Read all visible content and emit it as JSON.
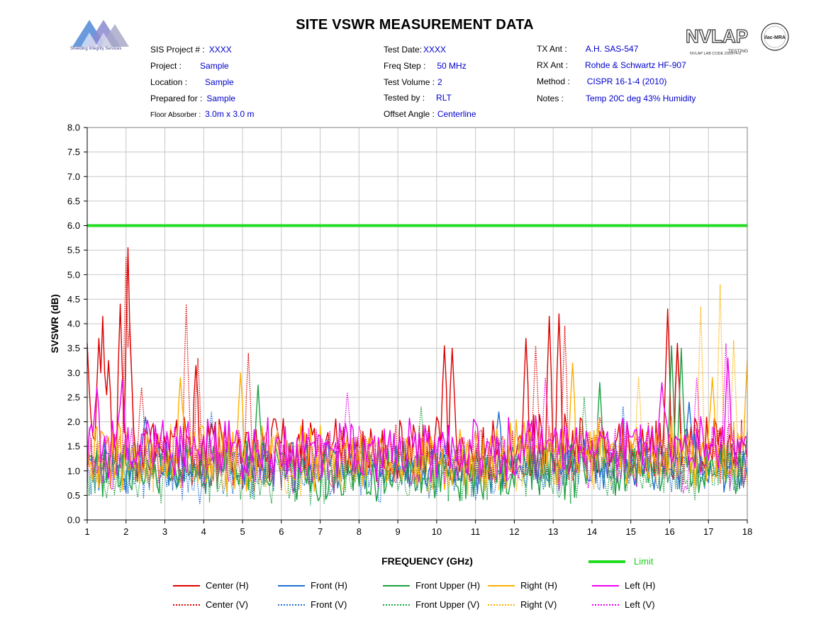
{
  "title": "SITE VSWR MEASUREMENT DATA",
  "logo_left": {
    "text": "Shielding Integrity Services"
  },
  "logo_right": {
    "text": "NVLAP",
    "sub": "TESTING",
    "code": "NVLAP LAB CODE 200974-0",
    "mra": "ilac-MRA"
  },
  "info": {
    "col1": [
      {
        "label": "SIS Project # :",
        "value": "XXXX"
      },
      {
        "label": "Project :",
        "value": "Sample"
      },
      {
        "label": "Location :",
        "value": "Sample"
      },
      {
        "label": "Prepared for :",
        "value": "Sample"
      },
      {
        "label": "Floor Absorber :",
        "value": "3.0m x 3.0 m"
      }
    ],
    "col2": [
      {
        "label": "Test Date:",
        "value": "XXXX"
      },
      {
        "label": "Freq Step :",
        "value": "50 MHz"
      },
      {
        "label": "Test Volume :",
        "value": "2"
      },
      {
        "label": "Tested by :",
        "value": "RLT"
      },
      {
        "label": "Offset Angle :",
        "value": "Centerline"
      }
    ],
    "col3": [
      {
        "label": "TX Ant :",
        "value": "A.H. SAS-547"
      },
      {
        "label": "RX Ant :",
        "value": "Rohde & Schwartz HF-907"
      },
      {
        "label": "Method :",
        "value": "CISPR 16-1-4 (2010)"
      },
      {
        "label": "Notes :",
        "value": "Temp 20C deg  43% Humidity"
      }
    ]
  },
  "colors": {
    "center": "#dd0000",
    "front": "#1f6fd0",
    "front_upper": "#1aa040",
    "right": "#ffb000",
    "left": "#ee00ee",
    "limit": "#22dd22",
    "grid": "#c8c8c8"
  },
  "chart_data": {
    "type": "line",
    "xlabel": "FREQUENCY (GHz)",
    "ylabel": "SVSWR (dB)",
    "xlim": [
      1,
      18
    ],
    "ylim": [
      0,
      8
    ],
    "x_ticks": [
      "1",
      "2",
      "3",
      "4",
      "5",
      "6",
      "7",
      "8",
      "9",
      "10",
      "11",
      "12",
      "13",
      "14",
      "15",
      "16",
      "17",
      "18"
    ],
    "y_ticks": [
      "0.0",
      "0.5",
      "1.0",
      "1.5",
      "2.0",
      "2.5",
      "3.0",
      "3.5",
      "4.0",
      "4.5",
      "5.0",
      "5.5",
      "6.0",
      "6.5",
      "7.0",
      "7.5",
      "8.0"
    ],
    "grid": true,
    "limit": {
      "name": "Limit",
      "value": 6.0
    },
    "freq_step_ghz": 0.05,
    "series": [
      {
        "name": "Center (H)",
        "color": "#dd0000",
        "style": "solid",
        "base": 1.45,
        "spread": 0.55,
        "peaks": [
          [
            1.0,
            3.6
          ],
          [
            1.3,
            3.7
          ],
          [
            1.4,
            4.15
          ],
          [
            1.55,
            3.25
          ],
          [
            1.85,
            4.4
          ],
          [
            2.05,
            5.55
          ],
          [
            2.1,
            3.8
          ],
          [
            3.8,
            3.15
          ],
          [
            10.2,
            3.55
          ],
          [
            10.4,
            3.5
          ],
          [
            12.3,
            3.7
          ],
          [
            12.9,
            4.15
          ],
          [
            13.15,
            4.2
          ],
          [
            15.95,
            4.3
          ],
          [
            16.2,
            3.6
          ]
        ]
      },
      {
        "name": "Center (V)",
        "color": "#dd0000",
        "style": "dotted",
        "base": 1.3,
        "spread": 0.55,
        "peaks": [
          [
            2.0,
            5.35
          ],
          [
            2.1,
            4.0
          ],
          [
            2.4,
            2.7
          ],
          [
            3.55,
            4.4
          ],
          [
            3.85,
            3.3
          ],
          [
            5.15,
            3.4
          ],
          [
            13.3,
            3.95
          ],
          [
            12.55,
            3.55
          ],
          [
            16.2,
            3.5
          ]
        ]
      },
      {
        "name": "Front (H)",
        "color": "#1f6fd0",
        "style": "solid",
        "base": 1.1,
        "spread": 0.45,
        "peaks": [
          [
            2.5,
            2.1
          ],
          [
            11.6,
            2.2
          ],
          [
            16.5,
            2.4
          ]
        ]
      },
      {
        "name": "Front (V)",
        "color": "#1f6fd0",
        "style": "dotted",
        "base": 0.95,
        "spread": 0.45,
        "peaks": [
          [
            4.2,
            2.2
          ],
          [
            14.8,
            2.3
          ]
        ]
      },
      {
        "name": "Front Upper (H)",
        "color": "#1aa040",
        "style": "solid",
        "base": 1.0,
        "spread": 0.5,
        "peaks": [
          [
            5.4,
            2.75
          ],
          [
            16.05,
            3.55
          ],
          [
            16.3,
            3.5
          ],
          [
            14.2,
            2.8
          ]
        ]
      },
      {
        "name": "Front Upper (V)",
        "color": "#1aa040",
        "style": "dotted",
        "base": 0.95,
        "spread": 0.5,
        "peaks": [
          [
            9.6,
            2.3
          ],
          [
            13.8,
            2.5
          ]
        ]
      },
      {
        "name": "Right (H)",
        "color": "#ffb000",
        "style": "solid",
        "base": 1.3,
        "spread": 0.55,
        "peaks": [
          [
            3.4,
            2.9
          ],
          [
            4.95,
            3.0
          ],
          [
            13.5,
            3.2
          ],
          [
            18.0,
            3.25
          ],
          [
            17.1,
            2.9
          ]
        ]
      },
      {
        "name": "Right (V)",
        "color": "#ffb000",
        "style": "dotted",
        "base": 1.2,
        "spread": 0.55,
        "peaks": [
          [
            16.8,
            4.35
          ],
          [
            17.3,
            4.8
          ],
          [
            17.65,
            3.65
          ],
          [
            15.2,
            2.9
          ]
        ]
      },
      {
        "name": "Left (H)",
        "color": "#ee00ee",
        "style": "solid",
        "base": 1.45,
        "spread": 0.5,
        "peaks": [
          [
            1.25,
            2.7
          ],
          [
            1.9,
            2.85
          ],
          [
            15.8,
            2.8
          ],
          [
            17.5,
            3.3
          ]
        ]
      },
      {
        "name": "Left (V)",
        "color": "#ee00ee",
        "style": "dotted",
        "base": 1.25,
        "spread": 0.55,
        "peaks": [
          [
            7.7,
            2.6
          ],
          [
            17.45,
            3.6
          ],
          [
            16.7,
            2.9
          ],
          [
            12.8,
            2.9
          ]
        ]
      }
    ]
  },
  "legend": {
    "limit_label": "Limit",
    "items": [
      "Center (H)",
      "Front (H)",
      "Front Upper (H)",
      "Right (H)",
      "Left (H)",
      "Center (V)",
      "Front (V)",
      "Front Upper (V)",
      "Right (V)",
      "Left (V)"
    ]
  }
}
